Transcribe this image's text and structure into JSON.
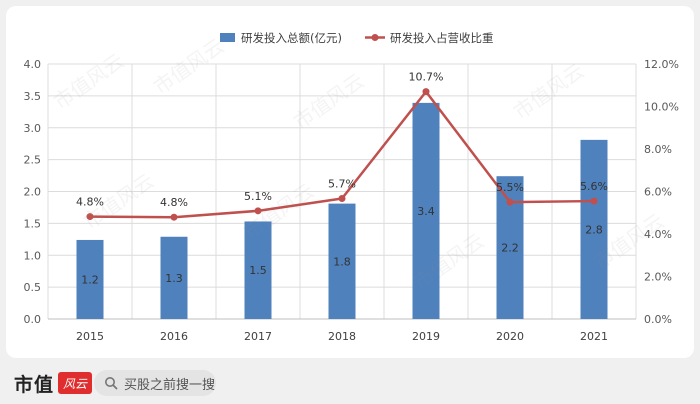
{
  "chart_data": {
    "type": "bar+line",
    "categories": [
      "2015",
      "2016",
      "2017",
      "2018",
      "2019",
      "2020",
      "2021"
    ],
    "series": [
      {
        "name": "研发投入总额(亿元)",
        "kind": "bar",
        "axis": "left",
        "color": "#4f81bd",
        "values": [
          1.2,
          1.3,
          1.5,
          1.8,
          3.4,
          2.2,
          2.8
        ],
        "plot_values": [
          1.24,
          1.29,
          1.53,
          1.81,
          3.39,
          2.24,
          2.81
        ],
        "labels": [
          "1.2",
          "1.3",
          "1.5",
          "1.8",
          "3.4",
          "2.2",
          "2.8"
        ]
      },
      {
        "name": "研发投入占营收比重",
        "kind": "line",
        "axis": "right",
        "color": "#c0504d",
        "values": [
          4.8,
          4.8,
          5.1,
          5.7,
          10.7,
          5.5,
          5.6
        ],
        "plot_values": [
          4.82,
          4.79,
          5.09,
          5.67,
          10.7,
          5.5,
          5.55
        ],
        "labels": [
          "4.8%",
          "4.8%",
          "5.1%",
          "5.7%",
          "10.7%",
          "5.5%",
          "5.6%"
        ]
      }
    ],
    "left_axis": {
      "min": 0,
      "max": 4,
      "ticks": [
        "0.0",
        "0.5",
        "1.0",
        "1.5",
        "2.0",
        "2.5",
        "3.0",
        "3.5",
        "4.0"
      ]
    },
    "right_axis": {
      "min": 0,
      "max": 12,
      "ticks": [
        "0.0%",
        "2.0%",
        "4.0%",
        "6.0%",
        "8.0%",
        "10.0%",
        "12.0%"
      ]
    },
    "grid": true,
    "legend_position": "top-center",
    "watermark": "市值风云"
  },
  "footer": {
    "brand": "市值",
    "brand_seal": "风云",
    "search_text": "买股之前搜一搜",
    "search_icon": "search-icon"
  }
}
